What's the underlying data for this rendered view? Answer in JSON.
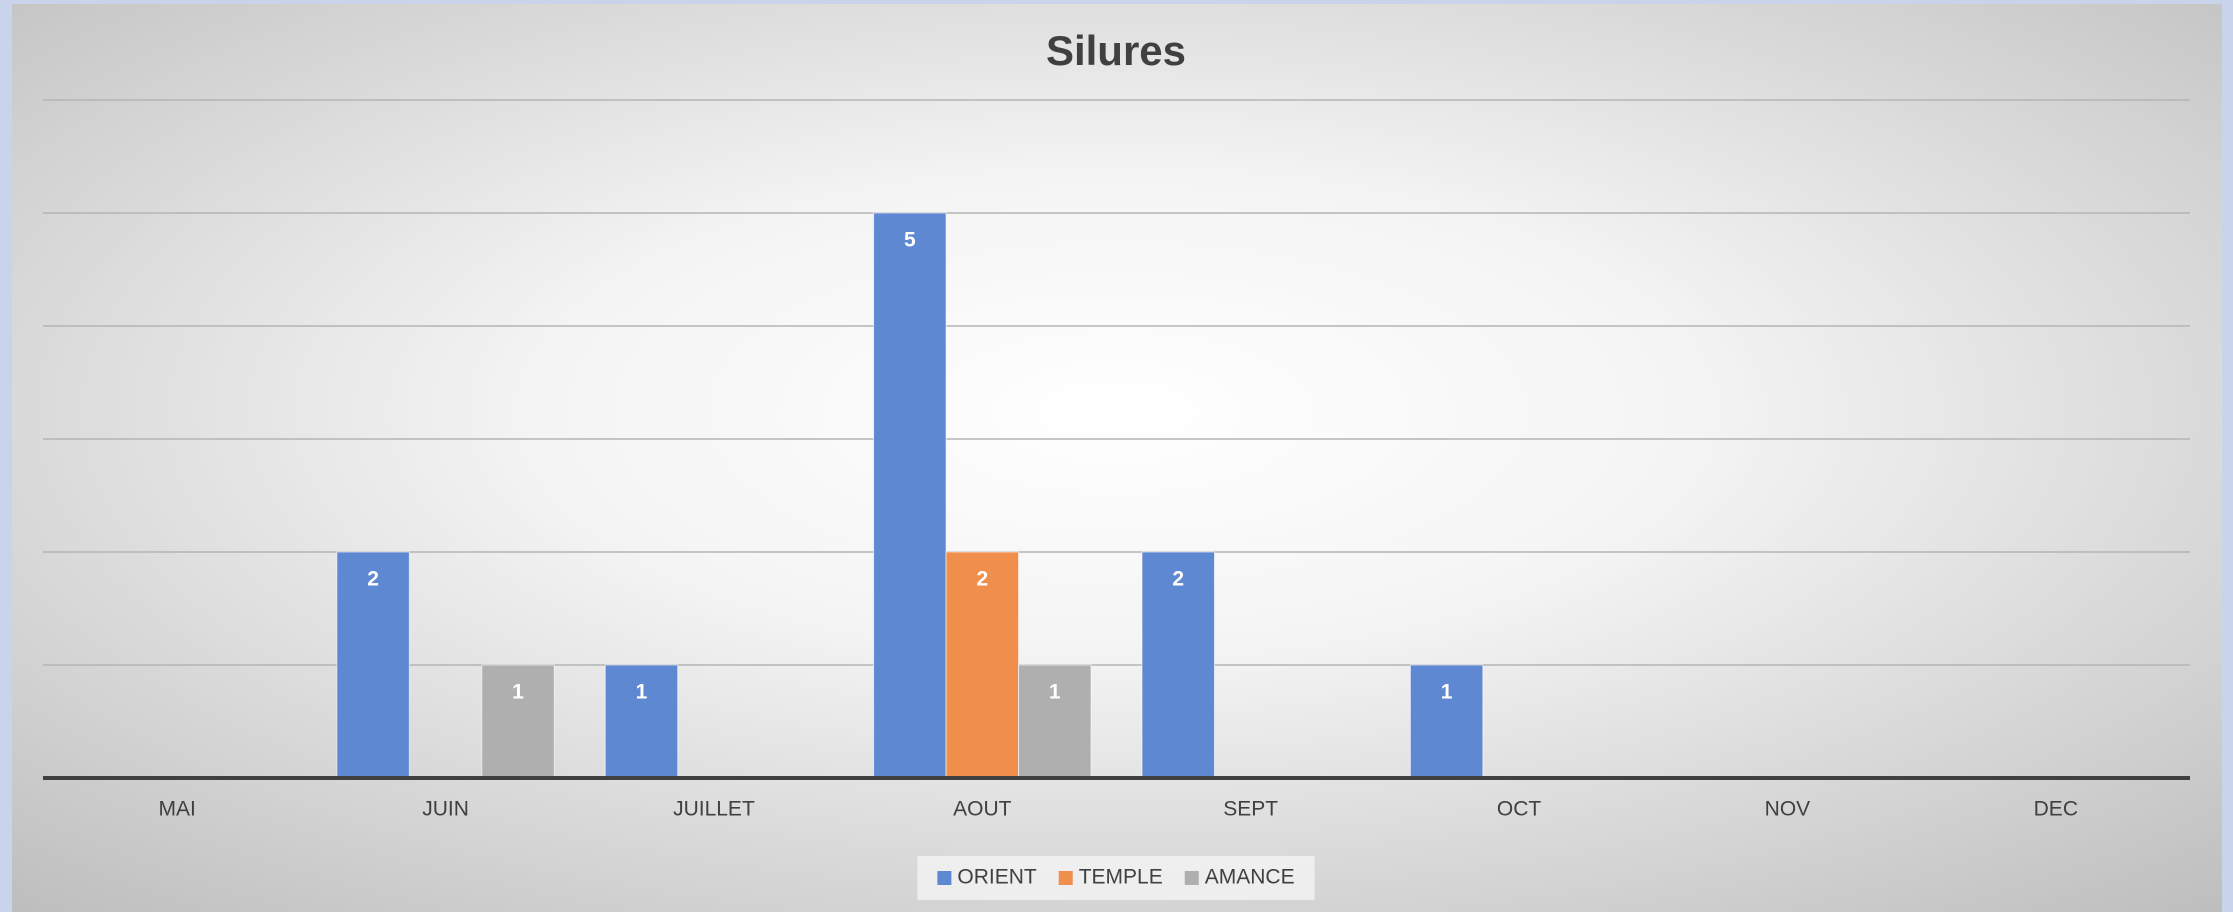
{
  "chart_data": {
    "type": "bar",
    "title": "Silures",
    "categories": [
      "MAI",
      "JUIN",
      "JUILLET",
      "AOUT",
      "SEPT",
      "OCT",
      "NOV",
      "DEC"
    ],
    "series": [
      {
        "name": "ORIENT",
        "color": "#5f88d2",
        "values": [
          0,
          2,
          1,
          5,
          2,
          1,
          0,
          0
        ]
      },
      {
        "name": "TEMPLE",
        "color": "#ef8f4b",
        "values": [
          0,
          0,
          0,
          2,
          0,
          0,
          0,
          0
        ]
      },
      {
        "name": "AMANCE",
        "color": "#afafaf",
        "values": [
          0,
          1,
          0,
          1,
          0,
          0,
          0,
          0
        ]
      }
    ],
    "ylim": [
      0,
      6
    ],
    "yticks": [
      0,
      1,
      2,
      3,
      4,
      5,
      6
    ],
    "grid": true,
    "legend": "bottom"
  }
}
